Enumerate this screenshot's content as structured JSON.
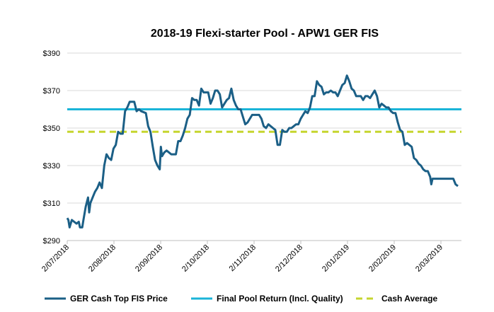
{
  "chart_data": {
    "type": "line",
    "title": "2018-19 Flexi-starter Pool - APW1 GER FIS",
    "xlabel": "",
    "ylabel": "",
    "ylim": [
      290,
      390
    ],
    "y_ticks": [
      "$290",
      "$310",
      "$330",
      "$350",
      "$370",
      "$390"
    ],
    "x_ticks": [
      "2/07/2018",
      "2/08/2018",
      "2/09/2018",
      "2/10/2018",
      "2/11/2018",
      "2/12/2018",
      "2/01/2019",
      "2/02/2019",
      "2/03/2019"
    ],
    "grid": "horizontal",
    "legend_position": "bottom",
    "series": [
      {
        "name": "GER Cash Top FIS Price",
        "color": "#1b5f86",
        "style": "solid",
        "points": [
          [
            0,
            302
          ],
          [
            0.5,
            301
          ],
          [
            1,
            297
          ],
          [
            2,
            301
          ],
          [
            3,
            300
          ],
          [
            4,
            299
          ],
          [
            5,
            300
          ],
          [
            5.5,
            297
          ],
          [
            6.5,
            297
          ],
          [
            7,
            301
          ],
          [
            8,
            308
          ],
          [
            9,
            313
          ],
          [
            9.5,
            305
          ],
          [
            10,
            310
          ],
          [
            11,
            313
          ],
          [
            12,
            316
          ],
          [
            13,
            318
          ],
          [
            14,
            321
          ],
          [
            15,
            318
          ],
          [
            16,
            330
          ],
          [
            17,
            336
          ],
          [
            18,
            334
          ],
          [
            19,
            333
          ],
          [
            20,
            339
          ],
          [
            21,
            341
          ],
          [
            22,
            348
          ],
          [
            23,
            347
          ],
          [
            24,
            347
          ],
          [
            25,
            359
          ],
          [
            26,
            361
          ],
          [
            27,
            364
          ],
          [
            28,
            364
          ],
          [
            29,
            364
          ],
          [
            30,
            359
          ],
          [
            31,
            360
          ],
          [
            32,
            359
          ],
          [
            34,
            358
          ],
          [
            35,
            351
          ],
          [
            36,
            348
          ],
          [
            37,
            340
          ],
          [
            38,
            333
          ],
          [
            39,
            330
          ],
          [
            40,
            328
          ],
          [
            40.5,
            340
          ],
          [
            41,
            335
          ],
          [
            42,
            337
          ],
          [
            43,
            338
          ],
          [
            44,
            337
          ],
          [
            45,
            336
          ],
          [
            46,
            336
          ],
          [
            47,
            336
          ],
          [
            48,
            343
          ],
          [
            49,
            343
          ],
          [
            50,
            346
          ],
          [
            51,
            350
          ],
          [
            52,
            355
          ],
          [
            53,
            357
          ],
          [
            54,
            366
          ],
          [
            55,
            365
          ],
          [
            56,
            365
          ],
          [
            57,
            362
          ],
          [
            58,
            371
          ],
          [
            59,
            369
          ],
          [
            60,
            369
          ],
          [
            61,
            369
          ],
          [
            62,
            363
          ],
          [
            63,
            366
          ],
          [
            64,
            370
          ],
          [
            65,
            370
          ],
          [
            66,
            368
          ],
          [
            67,
            361
          ],
          [
            68,
            363
          ],
          [
            69,
            365
          ],
          [
            70,
            366
          ],
          [
            71,
            371
          ],
          [
            72,
            365
          ],
          [
            73,
            362
          ],
          [
            74,
            360
          ],
          [
            75,
            360
          ],
          [
            76,
            356
          ],
          [
            77,
            352
          ],
          [
            78,
            353
          ],
          [
            79,
            355
          ],
          [
            80,
            357
          ],
          [
            81,
            357
          ],
          [
            82,
            357
          ],
          [
            83,
            357
          ],
          [
            84,
            355
          ],
          [
            85,
            351
          ],
          [
            86,
            350
          ],
          [
            87,
            352
          ],
          [
            88,
            351
          ],
          [
            89,
            350
          ],
          [
            90,
            349
          ],
          [
            91,
            341
          ],
          [
            92,
            341
          ],
          [
            93,
            349
          ],
          [
            94,
            348
          ],
          [
            95,
            348
          ],
          [
            96,
            350
          ],
          [
            97,
            350
          ],
          [
            98,
            351
          ],
          [
            99,
            352
          ],
          [
            100,
            352
          ],
          [
            101,
            355
          ],
          [
            102,
            357
          ],
          [
            103,
            359
          ],
          [
            104,
            358
          ],
          [
            105,
            361
          ],
          [
            106,
            367
          ],
          [
            107,
            367
          ],
          [
            108,
            375
          ],
          [
            109,
            373
          ],
          [
            110,
            372
          ],
          [
            111,
            368
          ],
          [
            112,
            369
          ],
          [
            113,
            369
          ],
          [
            114,
            370
          ],
          [
            115,
            369
          ],
          [
            116,
            369
          ],
          [
            117,
            367
          ],
          [
            118,
            370
          ],
          [
            119,
            373
          ],
          [
            120,
            374
          ],
          [
            121,
            378
          ],
          [
            122,
            375
          ],
          [
            123,
            371
          ],
          [
            124,
            370
          ],
          [
            125,
            367
          ],
          [
            126,
            367
          ],
          [
            127,
            367
          ],
          [
            128,
            365
          ],
          [
            129,
            367
          ],
          [
            130,
            367
          ],
          [
            131,
            366
          ],
          [
            132,
            368
          ],
          [
            133,
            370
          ],
          [
            134,
            367
          ],
          [
            135,
            361
          ],
          [
            136,
            363
          ],
          [
            137,
            362
          ],
          [
            138,
            361
          ],
          [
            139,
            361
          ],
          [
            140,
            359
          ],
          [
            141,
            358
          ],
          [
            142,
            358
          ],
          [
            143,
            353
          ],
          [
            144,
            349
          ],
          [
            145,
            348
          ],
          [
            146,
            341
          ],
          [
            147,
            342
          ],
          [
            148,
            341
          ],
          [
            149,
            340
          ],
          [
            150,
            334
          ],
          [
            151,
            333
          ],
          [
            152,
            331
          ],
          [
            153,
            330
          ],
          [
            154,
            328
          ],
          [
            155,
            327
          ],
          [
            156,
            327
          ],
          [
            157,
            324
          ],
          [
            157.5,
            320
          ],
          [
            158,
            323
          ],
          [
            159,
            323
          ],
          [
            160,
            323
          ],
          [
            162,
            323
          ],
          [
            164,
            323
          ],
          [
            166,
            323
          ],
          [
            167,
            323
          ],
          [
            168,
            320
          ],
          [
            169,
            319
          ]
        ]
      },
      {
        "name": "Final Pool Return (Incl. Quality)",
        "color": "#1bb4d8",
        "style": "solid",
        "constant": 360
      },
      {
        "name": "Cash Average",
        "color": "#c6d52f",
        "style": "dashed",
        "constant": 348
      }
    ]
  }
}
